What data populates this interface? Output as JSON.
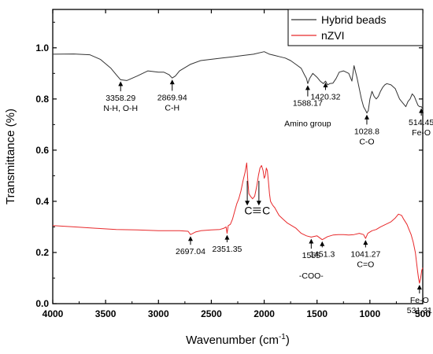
{
  "chart_data": {
    "type": "line",
    "title": "",
    "xlabel": "Wavenumber (cm",
    "xlabel_sup": "-1",
    "xlabel_end": ")",
    "ylabel": "Transmittance (%)",
    "xlim": [
      4000,
      500
    ],
    "ylim": [
      0.0,
      1.15
    ],
    "x_ticks": [
      4000,
      3500,
      3000,
      2500,
      2000,
      1500,
      1000,
      500
    ],
    "x_tick_labels": [
      "4000",
      "3500",
      "3000",
      "2500",
      "2000",
      "1500",
      "1000",
      "500"
    ],
    "y_ticks": [
      0.0,
      0.2,
      0.4,
      0.6,
      0.8,
      1.0
    ],
    "y_tick_labels": [
      "0.0",
      "0.2",
      "0.4",
      "0.6",
      "0.8",
      "1.0"
    ],
    "grid": false,
    "legend_position": "top-right",
    "series": [
      {
        "name": "Hybrid beads",
        "color": "#333333",
        "x": [
          4000,
          3800,
          3650,
          3550,
          3450,
          3400,
          3358,
          3300,
          3200,
          3100,
          3000,
          2950,
          2900,
          2870,
          2840,
          2800,
          2700,
          2600,
          2500,
          2400,
          2300,
          2200,
          2100,
          2000,
          1950,
          1900,
          1850,
          1800,
          1750,
          1700,
          1650,
          1620,
          1600,
          1588,
          1570,
          1540,
          1500,
          1470,
          1440,
          1420,
          1400,
          1380,
          1350,
          1320,
          1290,
          1250,
          1200,
          1170,
          1150,
          1120,
          1100,
          1080,
          1060,
          1040,
          1029,
          1015,
          1000,
          980,
          960,
          940,
          920,
          900,
          880,
          860,
          840,
          800,
          760,
          740,
          720,
          700,
          680,
          660,
          640,
          620,
          600,
          580,
          560,
          545,
          530,
          514,
          505,
          500
        ],
        "y": [
          0.975,
          0.976,
          0.973,
          0.955,
          0.92,
          0.895,
          0.875,
          0.872,
          0.89,
          0.91,
          0.905,
          0.905,
          0.895,
          0.882,
          0.89,
          0.91,
          0.935,
          0.95,
          0.955,
          0.96,
          0.965,
          0.97,
          0.975,
          0.985,
          0.975,
          0.97,
          0.965,
          0.96,
          0.95,
          0.935,
          0.92,
          0.895,
          0.88,
          0.86,
          0.88,
          0.9,
          0.885,
          0.87,
          0.86,
          0.87,
          0.855,
          0.86,
          0.862,
          0.88,
          0.905,
          0.91,
          0.9,
          0.87,
          0.93,
          0.88,
          0.84,
          0.8,
          0.77,
          0.755,
          0.745,
          0.755,
          0.8,
          0.83,
          0.81,
          0.8,
          0.81,
          0.83,
          0.845,
          0.855,
          0.86,
          0.855,
          0.84,
          0.82,
          0.8,
          0.79,
          0.78,
          0.77,
          0.79,
          0.8,
          0.82,
          0.81,
          0.79,
          0.775,
          0.77,
          0.77,
          0.765,
          0.77
        ]
      },
      {
        "name": "nZVI",
        "color": "#e8292b",
        "x": [
          4000,
          3800,
          3600,
          3400,
          3200,
          3000,
          2800,
          2720,
          2697,
          2650,
          2600,
          2500,
          2420,
          2380,
          2360,
          2351,
          2340,
          2320,
          2300,
          2280,
          2260,
          2240,
          2220,
          2200,
          2180,
          2165,
          2155,
          2145,
          2130,
          2110,
          2090,
          2070,
          2055,
          2040,
          2025,
          2010,
          2000,
          1990,
          1980,
          1970,
          1960,
          1950,
          1940,
          1920,
          1900,
          1880,
          1860,
          1820,
          1780,
          1740,
          1700,
          1650,
          1600,
          1555,
          1500,
          1451,
          1400,
          1350,
          1300,
          1250,
          1200,
          1150,
          1100,
          1060,
          1041,
          1020,
          980,
          940,
          900,
          850,
          800,
          760,
          730,
          700,
          680,
          650,
          630,
          610,
          590,
          570,
          550,
          540,
          531,
          520,
          510,
          500
        ],
        "y": [
          0.305,
          0.3,
          0.295,
          0.29,
          0.288,
          0.285,
          0.285,
          0.283,
          0.27,
          0.28,
          0.285,
          0.288,
          0.29,
          0.295,
          0.3,
          0.275,
          0.305,
          0.31,
          0.33,
          0.36,
          0.39,
          0.41,
          0.44,
          0.48,
          0.515,
          0.55,
          0.48,
          0.43,
          0.42,
          0.41,
          0.42,
          0.46,
          0.5,
          0.53,
          0.54,
          0.52,
          0.49,
          0.5,
          0.53,
          0.52,
          0.48,
          0.43,
          0.4,
          0.385,
          0.375,
          0.36,
          0.345,
          0.33,
          0.315,
          0.305,
          0.295,
          0.275,
          0.265,
          0.26,
          0.265,
          0.25,
          0.262,
          0.268,
          0.27,
          0.27,
          0.268,
          0.27,
          0.275,
          0.27,
          0.255,
          0.275,
          0.285,
          0.29,
          0.3,
          0.31,
          0.32,
          0.335,
          0.35,
          0.345,
          0.33,
          0.31,
          0.29,
          0.27,
          0.24,
          0.2,
          0.13,
          0.1,
          0.08,
          0.1,
          0.13,
          0.14
        ]
      }
    ],
    "annotations": [
      {
        "series": 0,
        "x": 3358,
        "y": 0.875,
        "dy_data": 0.045,
        "lines": [
          "3358.29",
          "N-H, O-H"
        ]
      },
      {
        "series": 0,
        "x": 2870,
        "y": 0.882,
        "dy_data": 0.05,
        "lines": [
          "2869.94",
          "C-H"
        ]
      },
      {
        "series": 0,
        "x": 1588,
        "y": 0.86,
        "dy_data": 0.05,
        "lines": [
          "1588.17",
          "",
          "Amino group"
        ]
      },
      {
        "series": 0,
        "x": 1420,
        "y": 0.87,
        "dy_data": 0.035,
        "lines": [
          "1420.32"
        ]
      },
      {
        "series": 0,
        "x": 1029,
        "y": 0.745,
        "dy_data": 0.045,
        "lines": [
          "1028.8",
          "C-O"
        ]
      },
      {
        "series": 0,
        "x": 514,
        "y": 0.77,
        "dy_data": 0.035,
        "lines": [
          "514.45",
          "Fe-O"
        ]
      },
      {
        "series": 1,
        "x": 2697,
        "y": 0.27,
        "dy_data": 0.04,
        "lines": [
          "2697.04"
        ]
      },
      {
        "series": 1,
        "x": 2351,
        "y": 0.275,
        "dy_data": 0.035,
        "lines": [
          "2351.35"
        ]
      },
      {
        "series": 1,
        "x": 1555,
        "y": 0.26,
        "dy_data": 0.045,
        "lines": [
          "1555",
          "",
          "-COO-"
        ]
      },
      {
        "series": 1,
        "x": 1451,
        "y": 0.25,
        "dy_data": 0.03,
        "lines": [
          "1451.3"
        ]
      },
      {
        "series": 1,
        "x": 1041,
        "y": 0.255,
        "dy_data": 0.035,
        "lines": [
          "1041.27",
          "C=O"
        ]
      },
      {
        "series": 1,
        "x": 531,
        "y": 0.08,
        "dy_data": 0.04,
        "lines": [
          "Fe-O",
          "531.31"
        ]
      }
    ],
    "triple_bond_label": {
      "left": "C",
      "right": "C"
    }
  }
}
